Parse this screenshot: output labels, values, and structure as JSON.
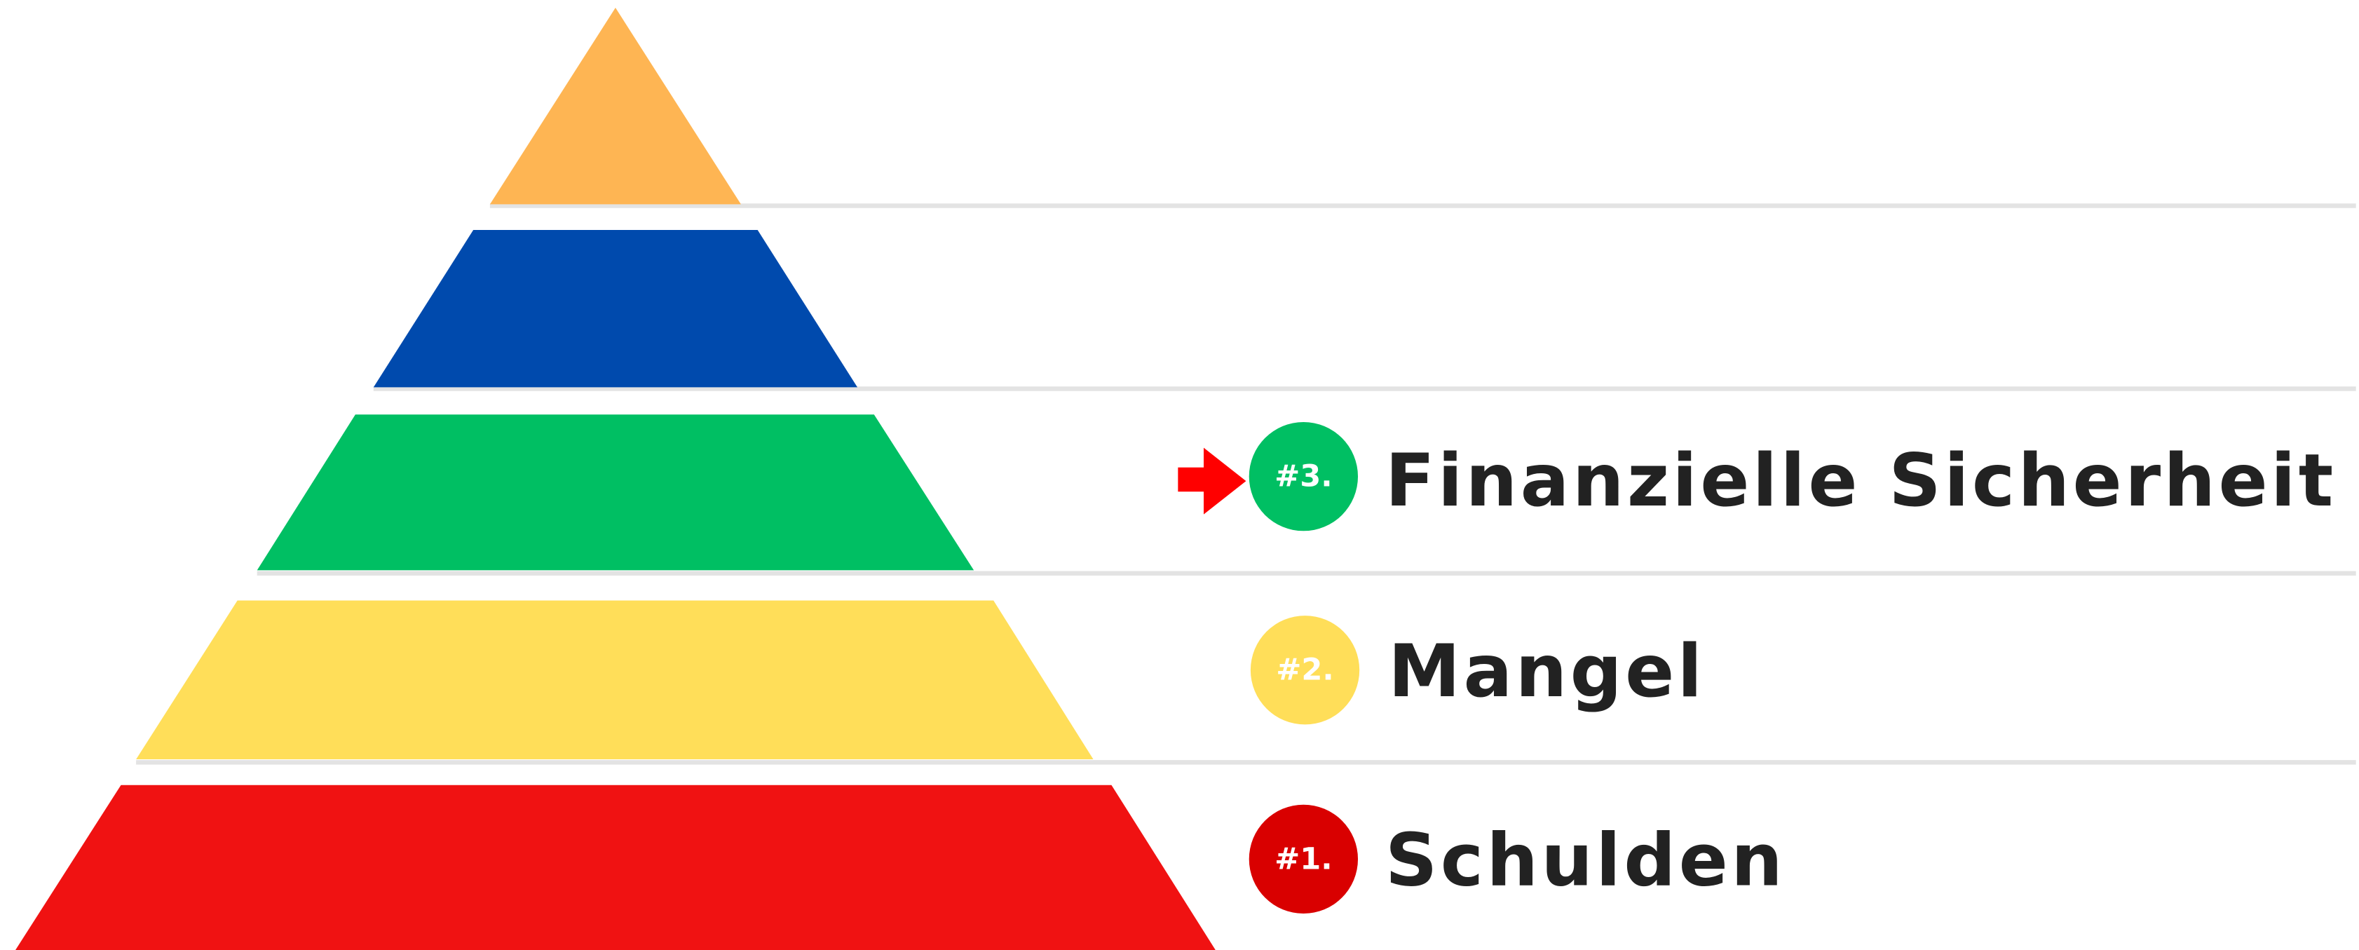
{
  "levels": [
    {
      "badge": "#3.",
      "label": "Finanzielle Sicherheit"
    },
    {
      "badge": "#2.",
      "label": "Mangel"
    },
    {
      "badge": "#1.",
      "label": "Schulden"
    }
  ]
}
